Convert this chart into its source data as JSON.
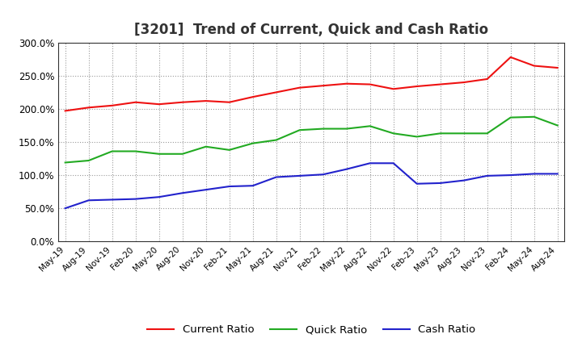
{
  "title": "[3201]  Trend of Current, Quick and Cash Ratio",
  "x_labels": [
    "May-19",
    "Aug-19",
    "Nov-19",
    "Feb-20",
    "May-20",
    "Aug-20",
    "Nov-20",
    "Feb-21",
    "May-21",
    "Aug-21",
    "Nov-21",
    "Feb-22",
    "May-22",
    "Aug-22",
    "Nov-22",
    "Feb-23",
    "May-23",
    "Aug-23",
    "Nov-23",
    "Feb-24",
    "May-24",
    "Aug-24"
  ],
  "current_ratio": [
    197,
    202,
    205,
    210,
    207,
    210,
    212,
    210,
    218,
    225,
    232,
    235,
    238,
    237,
    230,
    234,
    237,
    240,
    245,
    278,
    265,
    262
  ],
  "quick_ratio": [
    119,
    122,
    136,
    136,
    132,
    132,
    143,
    138,
    148,
    153,
    168,
    170,
    170,
    174,
    163,
    158,
    163,
    163,
    163,
    187,
    188,
    175
  ],
  "cash_ratio": [
    50,
    62,
    63,
    64,
    67,
    73,
    78,
    83,
    84,
    97,
    99,
    101,
    109,
    118,
    118,
    87,
    88,
    92,
    99,
    100,
    102,
    102
  ],
  "current_color": "#ee1111",
  "quick_color": "#22aa22",
  "cash_color": "#2222cc",
  "ylim": [
    0,
    300
  ],
  "yticks": [
    0,
    50,
    100,
    150,
    200,
    250,
    300
  ],
  "background_color": "#ffffff",
  "grid_color": "#999999",
  "title_fontsize": 12,
  "legend_labels": [
    "Current Ratio",
    "Quick Ratio",
    "Cash Ratio"
  ]
}
